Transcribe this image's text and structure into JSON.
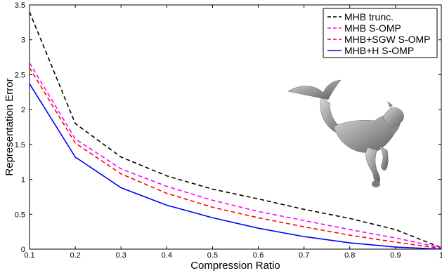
{
  "chart_data": {
    "type": "line",
    "xlabel": "Compression Ratio",
    "ylabel": "Representation Error",
    "xlim": [
      0.1,
      1.0
    ],
    "ylim": [
      0,
      3.5
    ],
    "x": [
      0.1,
      0.2,
      0.3,
      0.4,
      0.5,
      0.6,
      0.7,
      0.8,
      0.9,
      1.0
    ],
    "x_tick_labels": [
      "0.1",
      "0.2",
      "0.3",
      "0.4",
      "0.5",
      "0.6",
      "0.7",
      "0.8",
      "0.9",
      "1"
    ],
    "y_ticks": [
      0,
      0.5,
      1,
      1.5,
      2,
      2.5,
      3,
      3.5
    ],
    "y_tick_labels": [
      "0",
      "0.5",
      "1",
      "1.5",
      "2",
      "2.5",
      "3",
      "3.5"
    ],
    "legend_position": "top-right",
    "series": [
      {
        "name": "MHB trunc.",
        "color": "#000000",
        "dash": "dashed",
        "values": [
          3.4,
          1.8,
          1.32,
          1.05,
          0.86,
          0.72,
          0.57,
          0.44,
          0.28,
          0.02
        ]
      },
      {
        "name": "MHB S-OMP",
        "color": "#ff00ff",
        "dash": "dashed",
        "values": [
          2.67,
          1.58,
          1.15,
          0.9,
          0.7,
          0.54,
          0.41,
          0.28,
          0.16,
          0.02
        ]
      },
      {
        "name": "MHB+SGW S-OMP",
        "color": "#ff0000",
        "dash": "dashed",
        "values": [
          2.6,
          1.52,
          1.08,
          0.8,
          0.6,
          0.45,
          0.32,
          0.2,
          0.1,
          0.01
        ]
      },
      {
        "name": "MHB+H S-OMP",
        "color": "#0000ff",
        "dash": "solid",
        "values": [
          2.37,
          1.32,
          0.88,
          0.63,
          0.45,
          0.3,
          0.18,
          0.09,
          0.03,
          0.0
        ]
      }
    ],
    "inset_image": "hippocampus-mesh-icon"
  }
}
